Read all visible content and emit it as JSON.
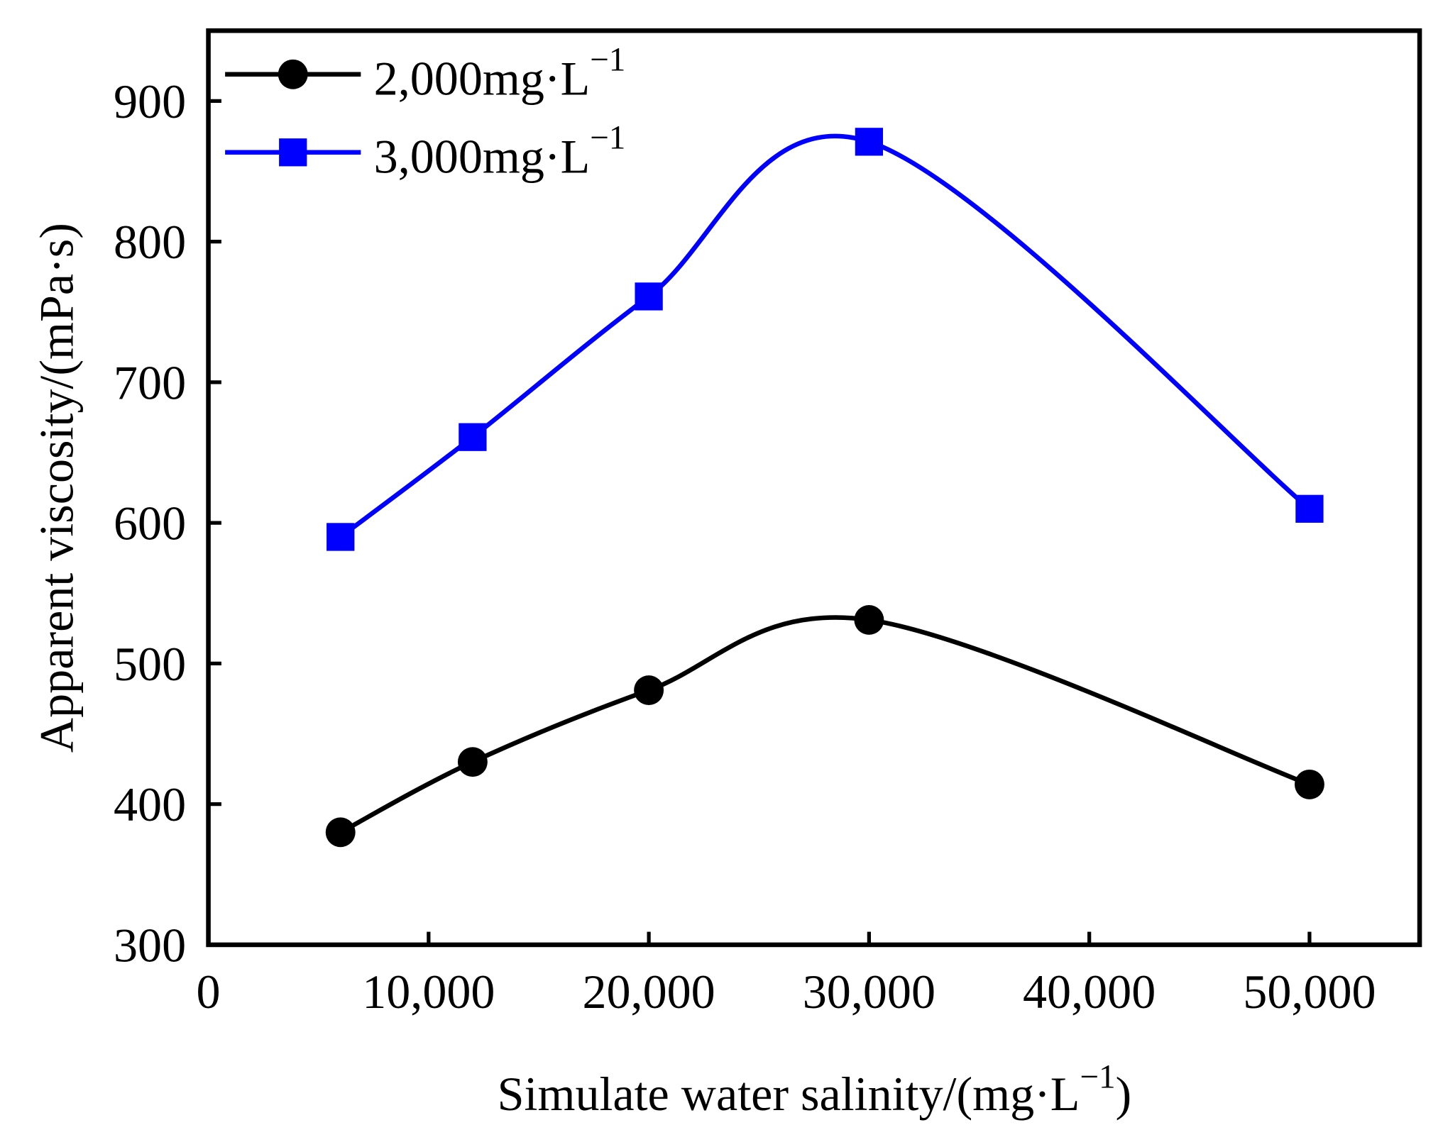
{
  "chart_data": {
    "type": "line",
    "title": "",
    "xlabel": "Simulate water salinity/(mg·L",
    "xlabel_sup": "−1",
    "xlabel_close": ")",
    "ylabel": "Apparent viscosity/(mPa·s)",
    "xlim": [
      0,
      55000
    ],
    "ylim": [
      300,
      950
    ],
    "xticks": [
      0,
      10000,
      20000,
      30000,
      40000,
      50000
    ],
    "xtick_labels": [
      "0",
      "10,000",
      "20,000",
      "30,000",
      "40,000",
      "50,000"
    ],
    "yticks": [
      300,
      400,
      500,
      600,
      700,
      800,
      900
    ],
    "ytick_labels": [
      "300",
      "400",
      "500",
      "600",
      "700",
      "800",
      "900"
    ],
    "grid": false,
    "legend_position": "top-left",
    "x": [
      6000,
      12000,
      20000,
      30000,
      50000
    ],
    "series": [
      {
        "name": "2,000mg·L",
        "name_sup": "−1",
        "color": "#000000",
        "marker": "circle",
        "values": [
          380,
          430,
          481,
          531,
          414
        ]
      },
      {
        "name": "3,000mg·L",
        "name_sup": "−1",
        "color": "#0000ff",
        "marker": "square",
        "values": [
          590,
          661,
          761,
          871,
          610
        ]
      }
    ]
  }
}
